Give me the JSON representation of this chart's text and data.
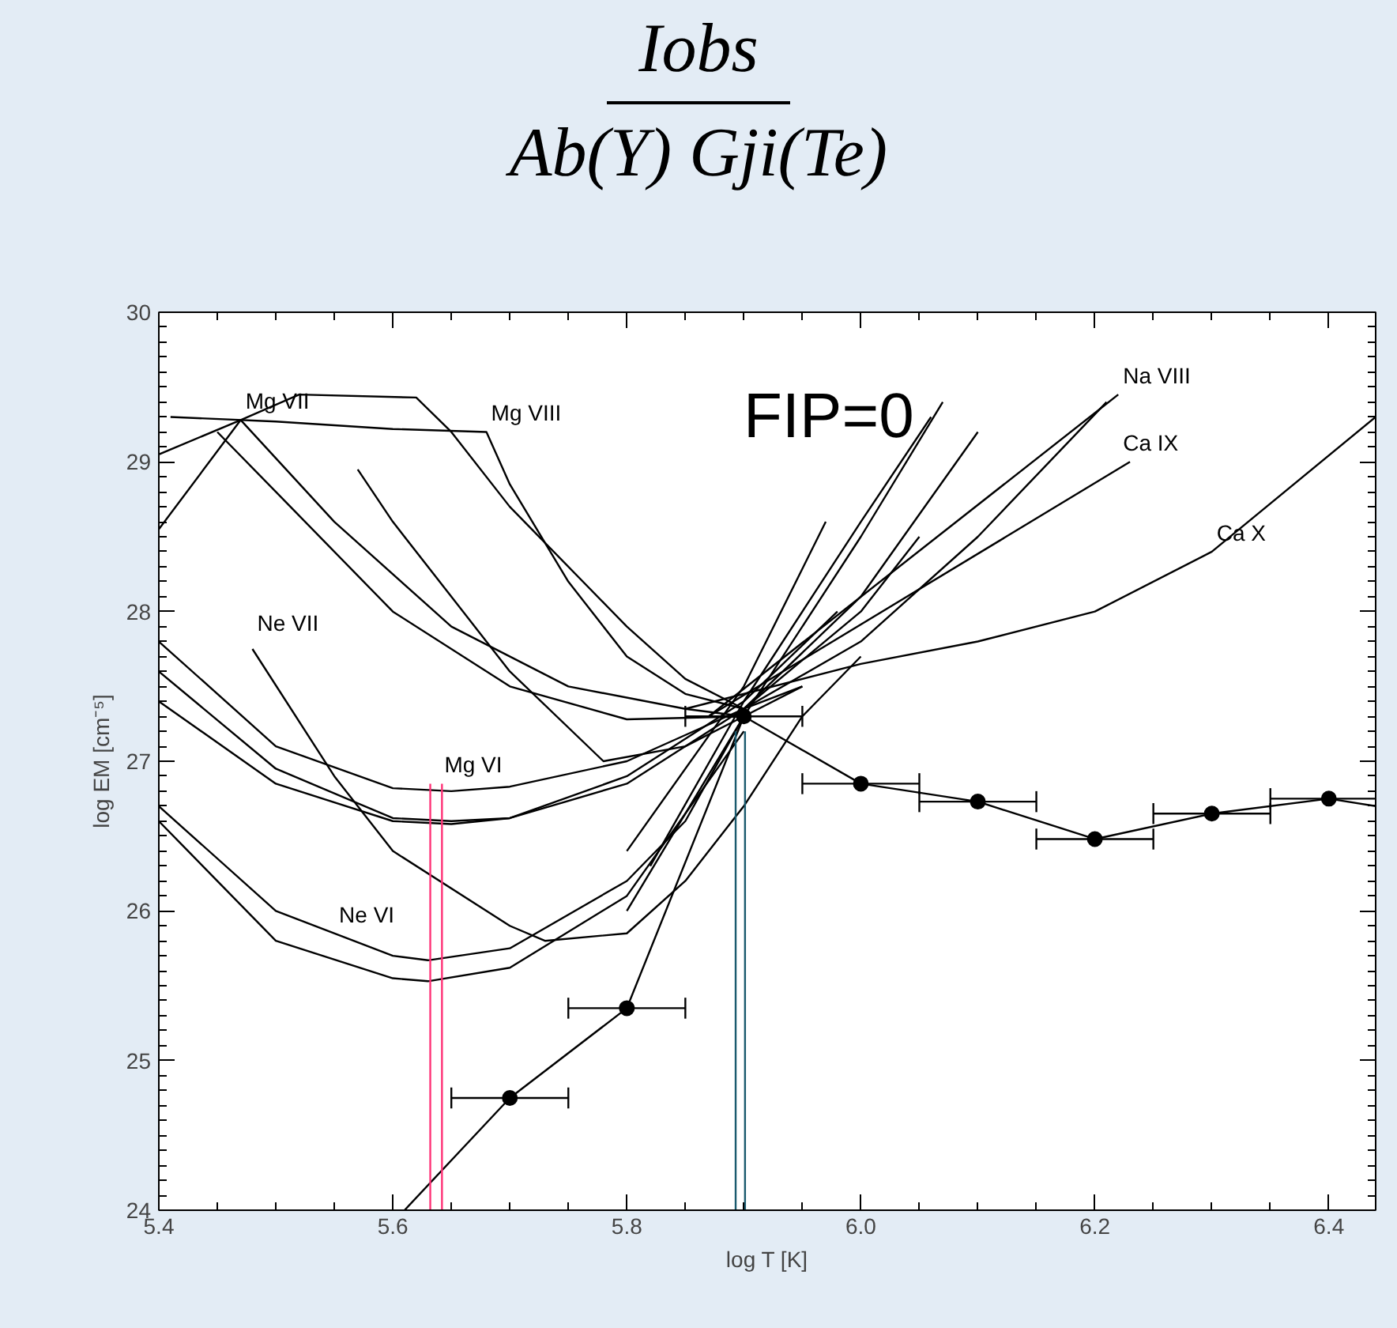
{
  "chart_data": {
    "type": "line",
    "title": "Iobs",
    "subtitle": "Ab(Y) Gji(Te)",
    "xlabel": "log T [K]",
    "ylabel": "log EM [cm⁻⁵]",
    "xlim": [
      5.4,
      6.44
    ],
    "ylim": [
      24,
      30
    ],
    "xticks": [
      5.4,
      5.6,
      5.8,
      {
        "value": 6.0,
        "label": "6.0"
      },
      6.2,
      6.4
    ],
    "yticks": [
      24,
      25,
      26,
      27,
      28,
      29,
      30
    ],
    "marker": "none",
    "line_style": "solid",
    "annotations": [
      "FIP=0",
      {
        "text": "Mg VII",
        "x": 5.47,
        "y": 29.28
      },
      {
        "text": "Mg VIII",
        "x": 5.68,
        "y": 29.2
      },
      {
        "text": "Na VIII",
        "x": 6.22,
        "y": 29.45
      },
      {
        "text": "Ca IX",
        "x": 6.22,
        "y": 29.0
      },
      {
        "text": "Ca X",
        "x": 6.3,
        "y": 28.4
      },
      {
        "text": "Ne VII",
        "x": 5.48,
        "y": 27.8
      },
      {
        "text": "Mg VI",
        "x": 5.64,
        "y": 26.85
      },
      {
        "text": "Ne VI",
        "x": 5.55,
        "y": 25.85
      }
    ],
    "series": [
      {
        "color": "#000000",
        "x": [
          5.4,
          5.5,
          5.6,
          5.65,
          5.7,
          5.8,
          5.9,
          6.0,
          6.05
        ],
        "values": [
          27.8,
          27.1,
          26.82,
          26.8,
          26.83,
          27.0,
          27.35,
          28.0,
          28.5
        ]
      },
      {
        "color": "#000000",
        "x": [
          5.4,
          5.5,
          5.6,
          5.65,
          5.7,
          5.8,
          5.9,
          6.0,
          6.1
        ],
        "values": [
          27.6,
          26.95,
          26.62,
          26.6,
          26.62,
          26.85,
          27.35,
          28.1,
          29.2
        ]
      },
      {
        "color": "#000000",
        "x": [
          5.4,
          5.5,
          5.6,
          5.65,
          5.7,
          5.8,
          5.9,
          5.98
        ],
        "values": [
          27.4,
          26.85,
          26.6,
          26.58,
          26.62,
          26.9,
          27.4,
          28.0
        ]
      },
      {
        "color": "#000000",
        "x": [
          5.4,
          5.5,
          5.6,
          5.63,
          5.7,
          5.8,
          5.85,
          5.9
        ],
        "values": [
          26.7,
          26.0,
          25.7,
          25.67,
          25.75,
          26.2,
          26.6,
          27.3
        ]
      },
      {
        "color": "#000000",
        "x": [
          5.4,
          5.5,
          5.6,
          5.63,
          5.7,
          5.8,
          5.9
        ],
        "values": [
          26.6,
          25.8,
          25.55,
          25.53,
          25.62,
          26.1,
          27.2
        ]
      },
      {
        "color": "#000000",
        "x": [
          5.48,
          5.55,
          5.6,
          5.7,
          5.73,
          5.8,
          5.85,
          5.9,
          5.95,
          6.0
        ],
        "values": [
          27.75,
          26.9,
          26.4,
          25.9,
          25.8,
          25.85,
          26.2,
          26.7,
          27.3,
          27.7
        ]
      },
      {
        "color": "#000000",
        "x": [
          5.4,
          5.47,
          5.55,
          5.65,
          5.75,
          5.85,
          5.9
        ],
        "values": [
          29.05,
          29.28,
          28.6,
          27.9,
          27.5,
          27.35,
          27.3
        ]
      },
      {
        "color": "#000000",
        "x": [
          5.4,
          5.47,
          5.52,
          5.62,
          5.65,
          5.7,
          5.8,
          5.85,
          5.9,
          5.95
        ],
        "values": [
          28.55,
          29.28,
          29.45,
          29.43,
          29.2,
          28.7,
          27.9,
          27.55,
          27.35,
          27.5
        ]
      },
      {
        "color": "#000000",
        "x": [
          5.41,
          5.5,
          5.6,
          5.68,
          5.7,
          5.75,
          5.8,
          5.85,
          5.9,
          6.0,
          6.1,
          6.21
        ],
        "values": [
          29.3,
          29.27,
          29.22,
          29.2,
          28.85,
          28.2,
          27.7,
          27.45,
          27.35,
          27.8,
          28.5,
          29.4
        ]
      },
      {
        "color": "#000000",
        "x": [
          5.45,
          5.5,
          5.6,
          5.7,
          5.8,
          5.9,
          5.95
        ],
        "values": [
          29.2,
          28.8,
          28.0,
          27.5,
          27.28,
          27.3,
          27.5
        ]
      },
      {
        "color": "#000000",
        "x": [
          5.57,
          5.6,
          5.7,
          5.78,
          5.85,
          5.9
        ],
        "values": [
          28.95,
          28.6,
          27.6,
          27.0,
          27.1,
          27.3
        ]
      },
      {
        "color": "#000000",
        "x": [
          5.85,
          6.0,
          6.1,
          6.2,
          6.3,
          6.44
        ],
        "values": [
          27.35,
          27.65,
          27.8,
          28.0,
          28.4,
          29.3
        ]
      },
      {
        "color": "#000000",
        "x": [
          5.87,
          6.23
        ],
        "values": [
          27.3,
          29.0
        ]
      },
      {
        "color": "#000000",
        "x": [
          5.87,
          6.22
        ],
        "values": [
          27.3,
          29.45
        ]
      },
      {
        "color": "#000000",
        "x": [
          5.8,
          5.9,
          6.0,
          6.07
        ],
        "values": [
          26.0,
          27.3,
          28.5,
          29.4
        ]
      },
      {
        "color": "#000000",
        "x": [
          5.82,
          5.9,
          6.0,
          6.06
        ],
        "values": [
          26.3,
          27.4,
          28.6,
          29.3
        ]
      },
      {
        "color": "#000000",
        "x": [
          5.8,
          5.9,
          5.97
        ],
        "values": [
          26.4,
          27.5,
          28.6
        ]
      },
      {
        "color": "#000000",
        "x": [
          5.61,
          5.7,
          5.8,
          5.9,
          6.0,
          6.1,
          6.2,
          6.3,
          6.4,
          6.44
        ],
        "values": [
          24.0,
          24.75,
          25.35,
          27.3,
          26.85,
          26.73,
          26.48,
          26.65,
          26.75,
          26.7
        ]
      },
      {
        "type": "scatter",
        "marker": "circle",
        "color": "#000000",
        "x": [
          5.7,
          5.8,
          5.9,
          6.0,
          6.1,
          6.2,
          6.3,
          6.4
        ],
        "values": [
          24.75,
          25.35,
          27.3,
          26.85,
          26.73,
          26.48,
          26.65,
          26.75
        ],
        "xerrors": [
          0.05,
          0.05,
          0.05,
          0.05,
          0.05,
          0.05,
          0.05,
          0.05
        ]
      },
      {
        "color": "#ff3377",
        "x": [
          5.632,
          5.632
        ],
        "values": [
          24.0,
          26.85
        ]
      },
      {
        "color": "#ff3377",
        "x": [
          5.642,
          5.642
        ],
        "values": [
          24.0,
          26.85
        ]
      },
      {
        "color": "#1a5a6e",
        "x": [
          5.893,
          5.893
        ],
        "values": [
          24.0,
          27.2
        ]
      },
      {
        "color": "#1a5a6e",
        "x": [
          5.901,
          5.901
        ],
        "values": [
          24.0,
          27.2
        ]
      }
    ]
  }
}
